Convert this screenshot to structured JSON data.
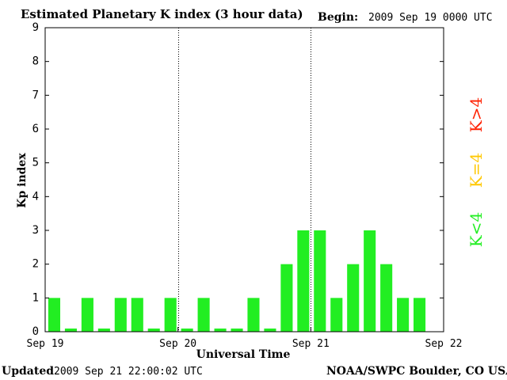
{
  "header": {
    "title": "Estimated Planetary K index (3 hour data)",
    "begin_label": "Begin:",
    "begin_value": "2009 Sep 19 0000 UTC"
  },
  "footer": {
    "updated_label": "Updated",
    "updated_value": "2009 Sep 21 22:00:02 UTC",
    "credit": "NOAA/SWPC Boulder, CO USA"
  },
  "legend": [
    {
      "label": "K>4",
      "color": "#ff2000"
    },
    {
      "label": "K=4",
      "color": "#ffc800"
    },
    {
      "label": "K<4",
      "color": "#22ee22"
    }
  ],
  "chart_data": {
    "type": "bar",
    "title": "Estimated Planetary K index (3 hour data)",
    "xlabel": "Universal Time",
    "ylabel": "Kp index",
    "ylim": [
      0,
      9
    ],
    "yticks": [
      "0",
      "1",
      "2",
      "3",
      "4",
      "5",
      "6",
      "7",
      "8",
      "9"
    ],
    "xticks": [
      "Sep 19",
      "Sep 20",
      "Sep 21",
      "Sep 22"
    ],
    "x_interval_hours": 3,
    "bar_color": "#22ee22",
    "day_separators": true,
    "values": [
      1,
      0,
      1,
      0,
      1,
      1,
      0,
      1,
      0,
      1,
      0,
      0,
      1,
      0,
      2,
      3,
      3,
      1,
      2,
      3,
      2,
      1,
      1
    ]
  }
}
